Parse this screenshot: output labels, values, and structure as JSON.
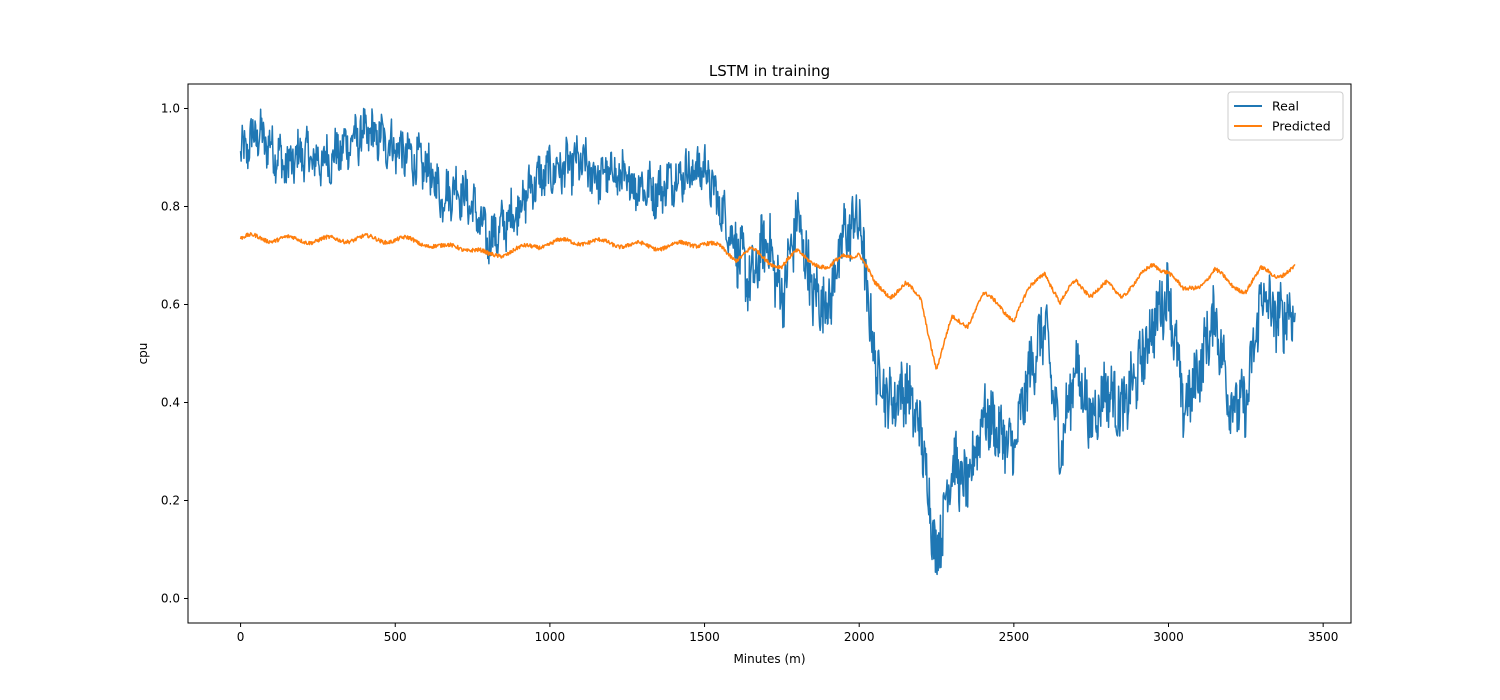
{
  "chart_data": {
    "type": "line",
    "title": "LSTM in training",
    "xlabel": "Minutes (m)",
    "ylabel": "cpu",
    "xlim": [
      -170,
      3590
    ],
    "ylim": [
      -0.05,
      1.05
    ],
    "xticks": [
      0,
      500,
      1000,
      1500,
      2000,
      2500,
      3000,
      3500
    ],
    "yticks": [
      0.0,
      0.2,
      0.4,
      0.6,
      0.8,
      1.0
    ],
    "grid": false,
    "legend": "top-right",
    "colors": {
      "Real": "#1f77b4",
      "Predicted": "#ff7f0e"
    },
    "series": [
      {
        "name": "Real",
        "color": "#1f77b4",
        "x": [
          0,
          50,
          100,
          150,
          200,
          250,
          300,
          350,
          400,
          450,
          500,
          550,
          600,
          650,
          700,
          750,
          800,
          850,
          900,
          950,
          1000,
          1050,
          1100,
          1150,
          1200,
          1250,
          1300,
          1350,
          1400,
          1450,
          1500,
          1550,
          1600,
          1650,
          1700,
          1750,
          1800,
          1850,
          1900,
          1950,
          2000,
          2050,
          2100,
          2150,
          2200,
          2250,
          2300,
          2350,
          2400,
          2450,
          2500,
          2550,
          2600,
          2650,
          2700,
          2750,
          2800,
          2850,
          2900,
          2950,
          3000,
          3050,
          3100,
          3150,
          3200,
          3250,
          3300,
          3350,
          3410
        ],
        "values": [
          0.9,
          0.95,
          0.92,
          0.88,
          0.91,
          0.89,
          0.9,
          0.93,
          0.95,
          0.94,
          0.92,
          0.9,
          0.88,
          0.82,
          0.84,
          0.8,
          0.73,
          0.76,
          0.8,
          0.85,
          0.87,
          0.88,
          0.89,
          0.86,
          0.87,
          0.85,
          0.84,
          0.83,
          0.86,
          0.87,
          0.88,
          0.8,
          0.72,
          0.64,
          0.74,
          0.61,
          0.78,
          0.62,
          0.6,
          0.74,
          0.78,
          0.48,
          0.4,
          0.43,
          0.34,
          0.08,
          0.28,
          0.22,
          0.38,
          0.34,
          0.3,
          0.46,
          0.56,
          0.3,
          0.48,
          0.36,
          0.43,
          0.38,
          0.46,
          0.56,
          0.63,
          0.38,
          0.47,
          0.58,
          0.4,
          0.39,
          0.62,
          0.57,
          0.59
        ]
      },
      {
        "name": "Predicted",
        "color": "#ff7f0e",
        "x": [
          0,
          50,
          100,
          150,
          200,
          250,
          300,
          350,
          400,
          450,
          500,
          550,
          600,
          650,
          700,
          750,
          800,
          850,
          900,
          950,
          1000,
          1050,
          1100,
          1150,
          1200,
          1250,
          1300,
          1350,
          1400,
          1450,
          1500,
          1550,
          1600,
          1650,
          1700,
          1750,
          1800,
          1850,
          1900,
          1950,
          2000,
          2050,
          2100,
          2150,
          2200,
          2250,
          2300,
          2350,
          2400,
          2450,
          2500,
          2550,
          2600,
          2650,
          2700,
          2750,
          2800,
          2850,
          2900,
          2950,
          3000,
          3050,
          3100,
          3150,
          3200,
          3250,
          3300,
          3350,
          3410
        ],
        "values": [
          0.735,
          0.737,
          0.734,
          0.733,
          0.732,
          0.731,
          0.732,
          0.734,
          0.735,
          0.733,
          0.732,
          0.731,
          0.725,
          0.715,
          0.72,
          0.712,
          0.7,
          0.705,
          0.712,
          0.72,
          0.725,
          0.728,
          0.729,
          0.727,
          0.725,
          0.722,
          0.72,
          0.718,
          0.72,
          0.724,
          0.726,
          0.715,
          0.695,
          0.712,
          0.69,
          0.68,
          0.705,
          0.69,
          0.67,
          0.7,
          0.705,
          0.64,
          0.62,
          0.64,
          0.61,
          0.47,
          0.57,
          0.56,
          0.62,
          0.6,
          0.57,
          0.63,
          0.67,
          0.6,
          0.65,
          0.62,
          0.64,
          0.62,
          0.65,
          0.68,
          0.67,
          0.625,
          0.64,
          0.67,
          0.64,
          0.63,
          0.67,
          0.66,
          0.675
        ]
      }
    ]
  }
}
